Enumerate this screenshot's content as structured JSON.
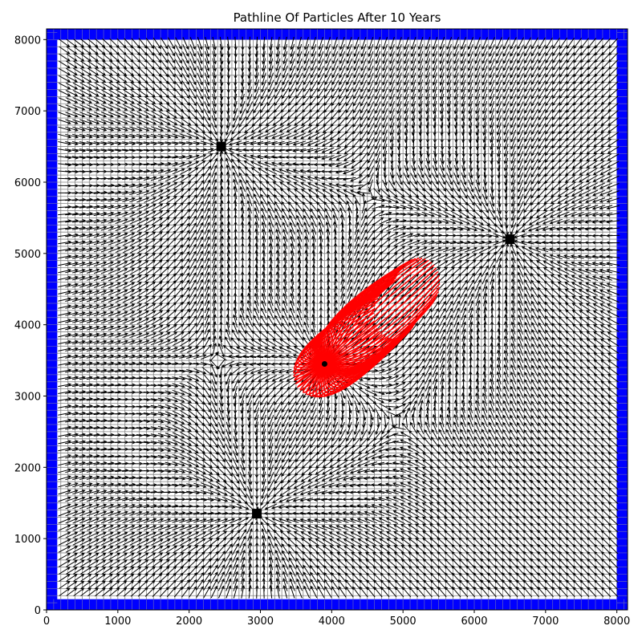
{
  "chart_data": {
    "type": "scatter",
    "title": "Pathline Of Particles After 10 Years",
    "xlabel": "",
    "ylabel": "",
    "xlim": [
      0,
      8150
    ],
    "ylim": [
      0,
      8150
    ],
    "xticks": [
      0,
      1000,
      2000,
      3000,
      4000,
      5000,
      6000,
      7000,
      8000
    ],
    "yticks": [
      0,
      1000,
      2000,
      3000,
      4000,
      5000,
      6000,
      7000,
      8000
    ],
    "xtick_labels": [
      "0",
      "1000",
      "2000",
      "3000",
      "4000",
      "5000",
      "6000",
      "7000",
      "8000"
    ],
    "ytick_labels": [
      "0",
      "1000",
      "2000",
      "3000",
      "4000",
      "5000",
      "6000",
      "7000",
      "8000"
    ],
    "grid": true,
    "grid_spacing": 100,
    "constant_head_boundary_width": 150,
    "colors": {
      "boundary": "#0000ff",
      "grid": "#808080",
      "pathline": "#ff0000",
      "wells": "#000000",
      "vectors": "#000000"
    },
    "wells": [
      {
        "x": 2450,
        "y": 6500
      },
      {
        "x": 6500,
        "y": 5200
      },
      {
        "x": 2950,
        "y": 1350
      }
    ],
    "particle_release_point": {
      "x": 3900,
      "y": 3450
    },
    "pathline_count": 72
  }
}
